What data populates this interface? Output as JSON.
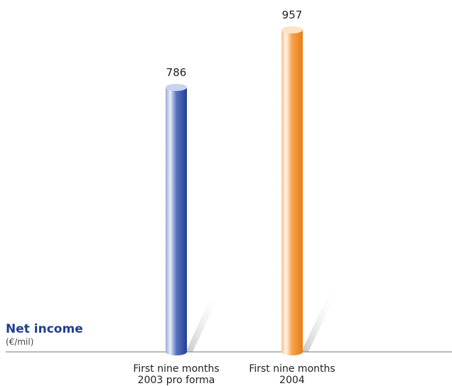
{
  "chart_data": {
    "type": "bar",
    "title": "Net income",
    "unit_label": "(€/mil)",
    "categories": [
      [
        "First nine months",
        "2003 pro forma"
      ],
      [
        "First nine months",
        "2004"
      ]
    ],
    "values": [
      786,
      957
    ],
    "value_labels": [
      "786",
      "957"
    ],
    "ylim": [
      0,
      957
    ],
    "grid": false,
    "legend": "none"
  },
  "colors": {
    "title": "#1f3f8f",
    "bar_2003": "#2b4ea8",
    "bar_2004": "#f0861f",
    "baseline": "#777777"
  }
}
